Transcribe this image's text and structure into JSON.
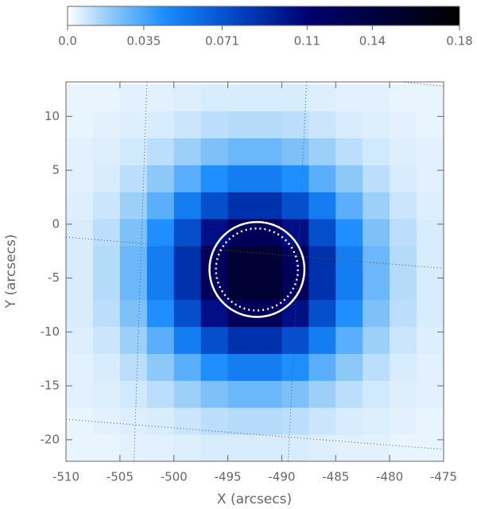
{
  "chart_data": {
    "type": "heatmap",
    "xlabel": "X (arcsecs)",
    "ylabel": "Y (arcsecs)",
    "xlim": [
      -510,
      -475
    ],
    "ylim": [
      -22,
      13.2
    ],
    "xticks": [
      -510,
      -505,
      -500,
      -495,
      -490,
      -485,
      -480,
      -475
    ],
    "yticks": [
      -20,
      -15,
      -10,
      -5,
      0,
      5,
      10
    ],
    "x": [
      -508.75,
      -506.25,
      -503.75,
      -501.25,
      -498.75,
      -496.25,
      -493.75,
      -491.25,
      -488.75,
      -486.25,
      -483.75,
      -481.25,
      -478.75,
      -476.25
    ],
    "y": [
      -20.75,
      -18.25,
      -15.75,
      -13.25,
      -10.75,
      -8.25,
      -5.75,
      -3.25,
      -0.75,
      1.75,
      4.25,
      6.75,
      9.25,
      11.75
    ],
    "z": [
      [
        0.004,
        0.004,
        0.005,
        0.005,
        0.006,
        0.007,
        0.007,
        0.007,
        0.007,
        0.006,
        0.005,
        0.005,
        0.004,
        0.004
      ],
      [
        0.004,
        0.005,
        0.006,
        0.007,
        0.009,
        0.012,
        0.013,
        0.013,
        0.012,
        0.009,
        0.007,
        0.006,
        0.005,
        0.004
      ],
      [
        0.005,
        0.006,
        0.008,
        0.012,
        0.017,
        0.023,
        0.027,
        0.027,
        0.023,
        0.017,
        0.012,
        0.008,
        0.006,
        0.005
      ],
      [
        0.005,
        0.007,
        0.012,
        0.02,
        0.031,
        0.044,
        0.052,
        0.052,
        0.044,
        0.031,
        0.02,
        0.012,
        0.007,
        0.005
      ],
      [
        0.006,
        0.009,
        0.017,
        0.031,
        0.052,
        0.073,
        0.087,
        0.087,
        0.073,
        0.052,
        0.031,
        0.017,
        0.009,
        0.006
      ],
      [
        0.007,
        0.012,
        0.023,
        0.044,
        0.073,
        0.103,
        0.123,
        0.123,
        0.103,
        0.073,
        0.044,
        0.023,
        0.012,
        0.007
      ],
      [
        0.007,
        0.013,
        0.027,
        0.052,
        0.087,
        0.123,
        0.147,
        0.147,
        0.123,
        0.087,
        0.052,
        0.027,
        0.013,
        0.007
      ],
      [
        0.007,
        0.013,
        0.027,
        0.052,
        0.087,
        0.123,
        0.147,
        0.147,
        0.123,
        0.087,
        0.052,
        0.027,
        0.013,
        0.007
      ],
      [
        0.007,
        0.012,
        0.023,
        0.044,
        0.073,
        0.103,
        0.123,
        0.123,
        0.103,
        0.073,
        0.044,
        0.023,
        0.012,
        0.007
      ],
      [
        0.006,
        0.009,
        0.017,
        0.031,
        0.052,
        0.073,
        0.087,
        0.087,
        0.073,
        0.052,
        0.031,
        0.017,
        0.009,
        0.006
      ],
      [
        0.005,
        0.007,
        0.012,
        0.02,
        0.031,
        0.044,
        0.052,
        0.052,
        0.044,
        0.031,
        0.02,
        0.012,
        0.007,
        0.005
      ],
      [
        0.005,
        0.006,
        0.008,
        0.012,
        0.017,
        0.023,
        0.027,
        0.027,
        0.023,
        0.017,
        0.012,
        0.008,
        0.006,
        0.005
      ],
      [
        0.004,
        0.005,
        0.006,
        0.007,
        0.009,
        0.012,
        0.013,
        0.013,
        0.012,
        0.009,
        0.007,
        0.006,
        0.005,
        0.004
      ],
      [
        0.004,
        0.004,
        0.005,
        0.005,
        0.006,
        0.007,
        0.007,
        0.007,
        0.007,
        0.006,
        0.005,
        0.005,
        0.004,
        0.004
      ]
    ],
    "colorscale": [
      [
        0,
        "#ffffff"
      ],
      [
        0.02,
        "#8cc8f8"
      ],
      [
        0.045,
        "#1a8cff"
      ],
      [
        0.08,
        "#0040c0"
      ],
      [
        0.11,
        "#000070"
      ],
      [
        0.18,
        "#000000"
      ]
    ],
    "colorbar_lim": [
      0,
      0.18
    ],
    "colorbar_ticks": [
      {
        "value": 0,
        "label": "0.0"
      },
      0.035,
      0.071,
      0.11,
      0.14,
      0.18
    ],
    "circles": [
      {
        "cx": -492.3,
        "cy": -4.2,
        "r": 4.4,
        "style": "solid"
      },
      {
        "cx": -492.3,
        "cy": -4.2,
        "r": 3.8,
        "style": "dotted"
      }
    ],
    "overlay_lines": [
      [
        [
          -502.5,
          13.2
        ],
        [
          -503.7,
          -22
        ]
      ],
      [
        [
          -487.7,
          13.2
        ],
        [
          -489.4,
          -22
        ]
      ],
      [
        [
          -510,
          -1.2
        ],
        [
          -475,
          -4.1
        ]
      ],
      [
        [
          -510,
          -18.1
        ],
        [
          -475,
          -20.9
        ]
      ],
      [
        [
          -478.9,
          13.2
        ],
        [
          -475,
          12.8
        ]
      ]
    ]
  }
}
